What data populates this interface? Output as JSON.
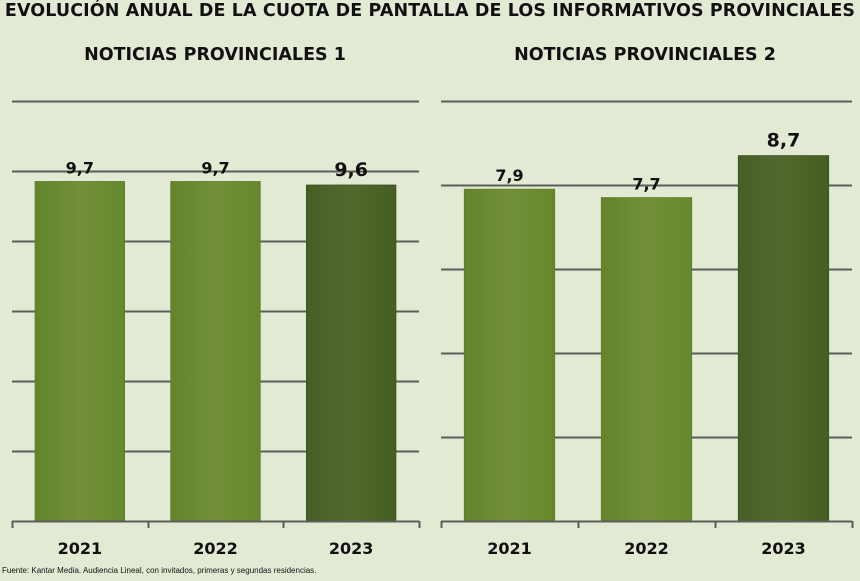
{
  "title": "EVOLUCIÓN ANUAL DE LA CUOTA DE PANTALLA DE LOS INFORMATIVOS PROVINCIALES",
  "source": "Fuente: Kantar Media. Audiencia Lineal, con invitados, primeras y segundas residencias.",
  "colors": {
    "background": "#e3ead4",
    "bar_light": "#6b8c30",
    "bar_dark": "#4b6228",
    "gridline": "#5a5e5a"
  },
  "chart_data": [
    {
      "type": "bar",
      "title": "NOTICIAS PROVINCIALES 1",
      "categories": [
        "2021",
        "2022",
        "2023"
      ],
      "values": [
        9.7,
        9.7,
        9.6
      ],
      "value_labels": [
        "9,7",
        "9,7",
        "9,6"
      ],
      "highlight_index": 2,
      "ylim": [
        0,
        12
      ],
      "ytick_step": 2,
      "xlabel": "",
      "ylabel": "",
      "grid": true,
      "legend": "none"
    },
    {
      "type": "bar",
      "title": "NOTICIAS PROVINCIALES 2",
      "categories": [
        "2021",
        "2022",
        "2023"
      ],
      "values": [
        7.9,
        7.7,
        8.7
      ],
      "value_labels": [
        "7,9",
        "7,7",
        "8,7"
      ],
      "highlight_index": 2,
      "ylim": [
        0,
        10
      ],
      "ytick_step": 2,
      "xlabel": "",
      "ylabel": "",
      "grid": true,
      "legend": "none"
    }
  ]
}
